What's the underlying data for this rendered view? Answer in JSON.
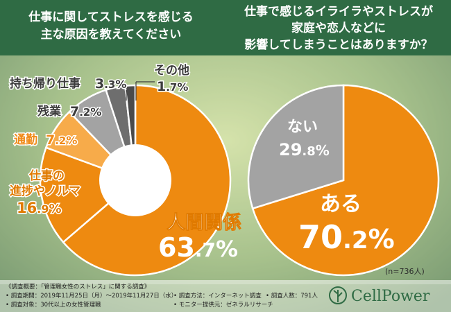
{
  "colors": {
    "header": "#2f6b44",
    "accent": "#f28b0c",
    "orange_dark": "#ee8a10",
    "orange_light": "#f7ab4a",
    "gray": "#a3a3a3",
    "gray_dark": "#6e6e6e",
    "gray_darker": "#4a4a4a",
    "panel": "#ffffff",
    "brand": "#2f6b44"
  },
  "header": {
    "left_title_line1": "仕事に関してストレスを感じる",
    "left_title_line2": "主な原因を教えてください",
    "right_title_line1": "仕事で感じるイライラやストレスが",
    "right_title_line2": "家庭や恋人などに",
    "right_title_line3": "影響してしまうことはありますか？"
  },
  "chart_data": [
    {
      "type": "pie",
      "variant": "donut",
      "title": "仕事に関してストレスを感じる主な原因を教えてください",
      "categories": [
        "人間関係",
        "仕事の進捗やノルマ",
        "通勤",
        "残業",
        "持ち帰り仕事",
        "その他"
      ],
      "values": [
        63.7,
        16.9,
        7.2,
        7.2,
        3.3,
        1.7
      ],
      "unit": "%",
      "colors": [
        "#ee8a10",
        "#ee8a10",
        "#f7ab4a",
        "#a3a3a3",
        "#6e6e6e",
        "#4a4a4a"
      ]
    },
    {
      "type": "pie",
      "title": "仕事で感じるイライラやストレスが家庭や恋人などに影響してしまうことはありますか？",
      "categories": [
        "ある",
        "ない"
      ],
      "values": [
        70.2,
        29.8
      ],
      "unit": "%",
      "sample_note": "(n=736人)",
      "colors": [
        "#ee8a10",
        "#a3a3a3"
      ]
    }
  ],
  "labels": {
    "left": {
      "human": {
        "name": "人間関係",
        "int": "63",
        "dec": ".7",
        "pct": "%"
      },
      "progress": {
        "line1": "仕事の",
        "line2": "進捗やノルマ",
        "int": "16",
        "dec": ".9",
        "pct": "%"
      },
      "commute": {
        "name": "通勤",
        "int": "7",
        "dec": ".2",
        "pct": "%"
      },
      "overtime": {
        "name": "残業",
        "int": "7",
        "dec": ".2",
        "pct": "%"
      },
      "takehome": {
        "name": "持ち帰り仕事",
        "int": "3",
        "dec": ".3",
        "pct": "%"
      },
      "other": {
        "name": "その他",
        "int": "1",
        "dec": ".7",
        "pct": "%"
      }
    },
    "right": {
      "yes": {
        "name": "ある",
        "int": "70",
        "dec": ".2",
        "pct": "%"
      },
      "no": {
        "name": "ない",
        "int": "29",
        "dec": ".8",
        "pct": "%"
      },
      "n_note": "(n=736人)"
    }
  },
  "footer": {
    "summary": "《調査概要：「管理職女性のストレス」に関する調査》",
    "period": "• 調査期間：2019年11月25日（月）〜2019年11月27日（水）",
    "method": "• 調査方法：インターネット調査",
    "respondents": "• 調査人数：791人",
    "target": "• 調査対象：30代以上の女性管理職",
    "provider": "• モニター提供元：ゼネラルリサーチ"
  },
  "brand": {
    "name": "CellPower"
  }
}
